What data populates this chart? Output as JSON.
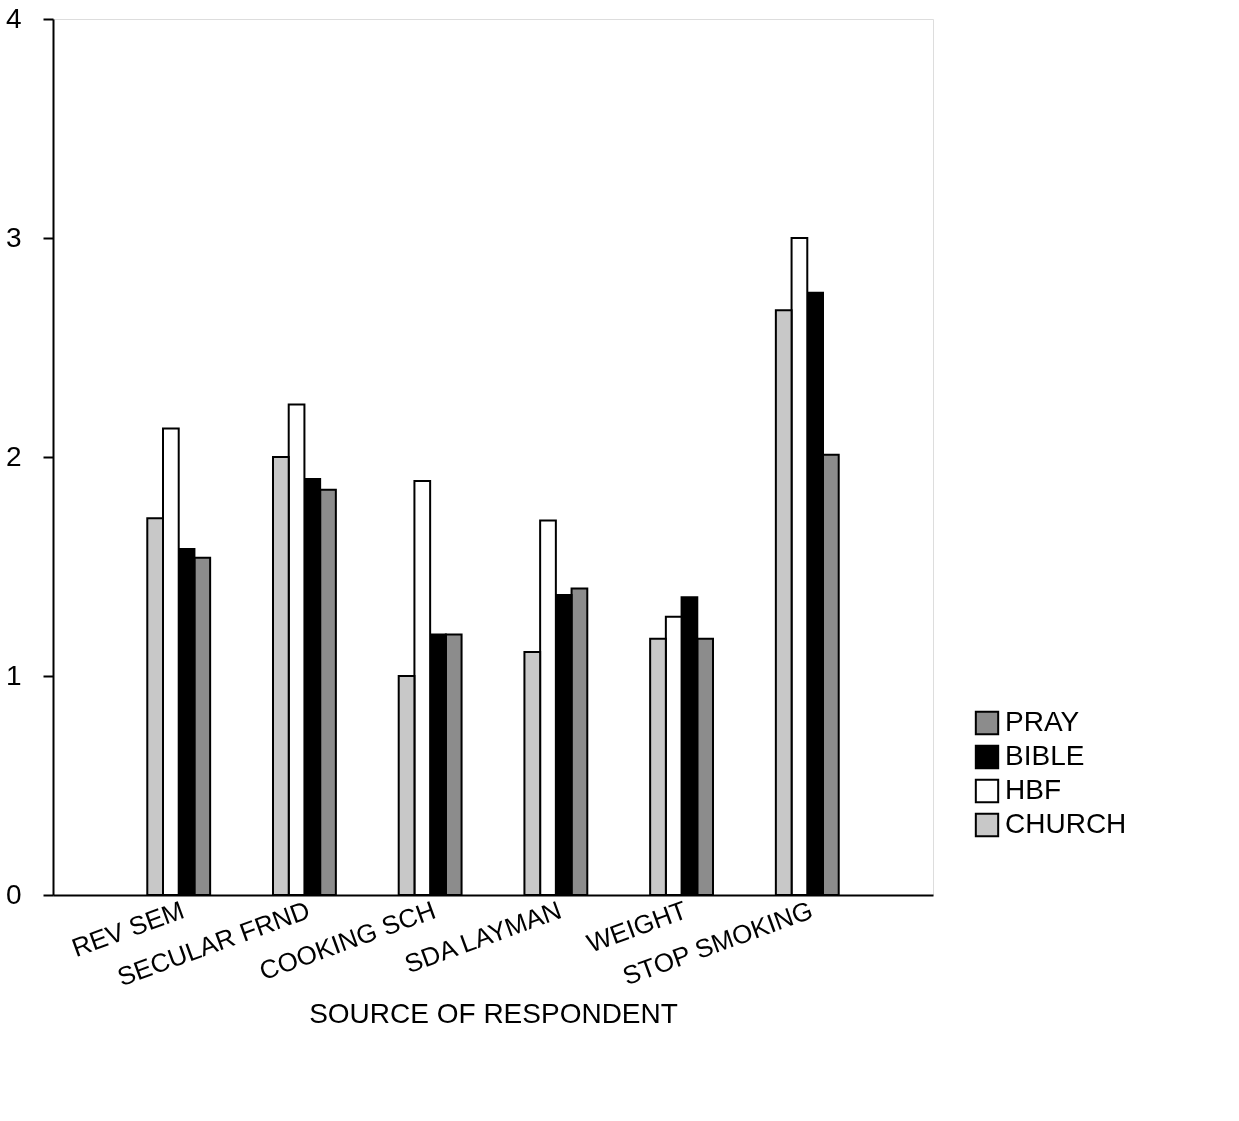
{
  "chart_data": {
    "type": "bar",
    "xlabel": "SOURCE OF RESPONDENT",
    "categories": [
      "REV SEM",
      "SECULAR FRND",
      "COOKING SCH",
      "SDA LAYMAN",
      "WEIGHT",
      "STOP SMOKING"
    ],
    "series": [
      {
        "name": "PRAY",
        "color": "#8c8c8c",
        "values": [
          1.54,
          1.85,
          1.19,
          1.4,
          1.17,
          2.01
        ]
      },
      {
        "name": "BIBLE",
        "color": "#000000",
        "values": [
          1.58,
          1.9,
          1.19,
          1.37,
          1.36,
          2.75
        ]
      },
      {
        "name": "HBF",
        "color": "#ffffff",
        "values": [
          2.13,
          2.24,
          1.89,
          1.71,
          1.27,
          3.0
        ]
      },
      {
        "name": "CHURCH",
        "color": "#c8c8c8",
        "values": [
          1.72,
          2.0,
          1.0,
          1.11,
          1.17,
          2.67
        ]
      }
    ],
    "ylim": [
      0,
      4
    ],
    "yticks": [
      0,
      1,
      2,
      3,
      4
    ],
    "grid": false,
    "legend": "bottom right"
  }
}
